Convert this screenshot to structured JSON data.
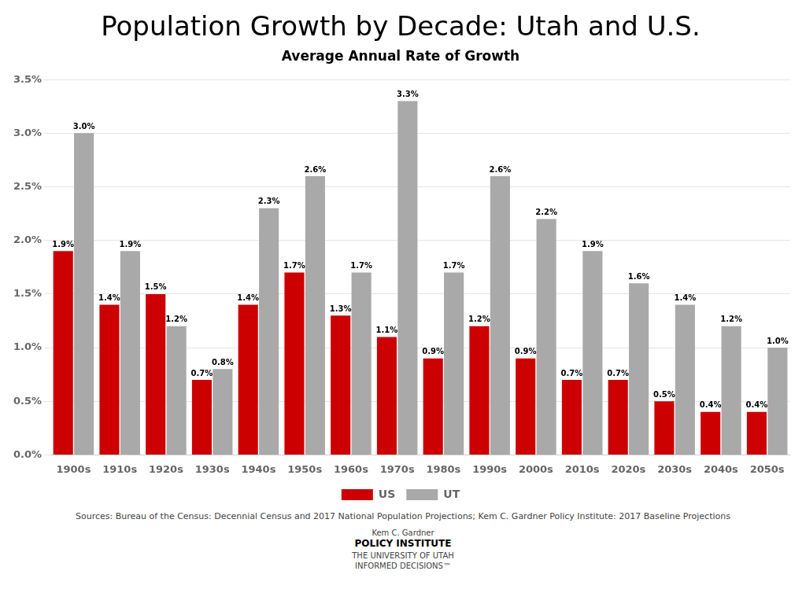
{
  "chart_data": {
    "type": "bar",
    "title": "Population Growth by Decade: Utah and U.S.",
    "subtitle": "Average Annual Rate of Growth",
    "categories": [
      "1900s",
      "1910s",
      "1920s",
      "1930s",
      "1940s",
      "1950s",
      "1960s",
      "1970s",
      "1980s",
      "1990s",
      "2000s",
      "2010s",
      "2020s",
      "2030s",
      "2040s",
      "2050s"
    ],
    "series": [
      {
        "name": "US",
        "color": "#CC0000",
        "values": [
          0.019,
          0.014,
          0.015,
          0.007,
          0.014,
          0.017,
          0.013,
          0.011,
          0.009,
          0.012,
          0.009,
          0.007,
          0.007,
          0.005,
          0.004,
          0.004
        ],
        "value_labels": [
          "1.9%",
          "1.4%",
          "1.5%",
          "0.7%",
          "1.4%",
          "1.7%",
          "1.3%",
          "1.1%",
          "0.9%",
          "1.2%",
          "0.9%",
          "0.7%",
          "0.7%",
          "0.5%",
          "0.4%",
          "0.4%"
        ]
      },
      {
        "name": "UT",
        "color": "#A9A9A9",
        "values": [
          0.03,
          0.019,
          0.012,
          0.008,
          0.023,
          0.026,
          0.017,
          0.033,
          0.017,
          0.026,
          0.022,
          0.019,
          0.016,
          0.014,
          0.012,
          0.01
        ],
        "value_labels": [
          "3.0%",
          "1.9%",
          "1.2%",
          "0.8%",
          "2.3%",
          "2.6%",
          "1.7%",
          "3.3%",
          "1.7%",
          "2.6%",
          "2.2%",
          "1.9%",
          "1.6%",
          "1.4%",
          "1.2%",
          "1.0%"
        ]
      }
    ],
    "ylim": [
      0.0,
      0.035
    ],
    "yticks": [
      {
        "value": 0.0,
        "label": "0.0%"
      },
      {
        "value": 0.005,
        "label": "0.5%"
      },
      {
        "value": 0.01,
        "label": "1.0%"
      },
      {
        "value": 0.015,
        "label": "1.5%"
      },
      {
        "value": 0.02,
        "label": "2.0%"
      },
      {
        "value": 0.025,
        "label": "2.5%"
      },
      {
        "value": 0.03,
        "label": "3.0%"
      },
      {
        "value": 0.035,
        "label": "3.5%"
      }
    ],
    "grid": true,
    "legend": "bottom",
    "data_labels": true,
    "annotations": [
      "Sources: Bureau of the Census: Decennial Census and 2017 National Population Projections; Kem C. Gardner Policy Institute: 2017 Baseline Projections",
      "Kem C. Gardner",
      "POLICY INSTITUTE",
      "THE UNIVERSITY OF UTAH",
      "INFORMED DECISIONS™"
    ]
  }
}
